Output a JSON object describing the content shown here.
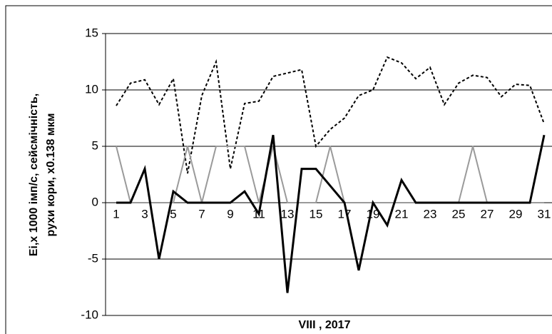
{
  "chart_data": {
    "type": "line",
    "xlabel": "VIII , 2017",
    "ylabel": [
      "Еі,х 1000 імп/с, сейсмічність,",
      "рухи кори, х0.138 мкм"
    ],
    "categories": [
      1,
      null,
      3,
      null,
      5,
      null,
      7,
      null,
      9,
      null,
      11,
      null,
      13,
      null,
      15,
      null,
      17,
      null,
      19,
      null,
      21,
      null,
      23,
      null,
      25,
      null,
      27,
      null,
      29,
      null,
      31
    ],
    "series": [
      {
        "color": "#000000",
        "dash": "dotted",
        "values": [
          8.6,
          10.6,
          10.9,
          8.7,
          11,
          2.6,
          9.5,
          12.5,
          3,
          8.8,
          9,
          11.2,
          11.5,
          11.8,
          5,
          6.5,
          7.5,
          9.5,
          10,
          12.9,
          12.4,
          11,
          12,
          8.7,
          10.6,
          11.3,
          11.1,
          9.4,
          10.5,
          10.4,
          7
        ]
      },
      {
        "color": "#9a9a9a",
        "dash": "solid",
        "values": [
          5,
          0,
          0,
          0,
          0,
          5,
          0,
          5,
          5,
          5,
          0,
          5,
          0,
          0,
          0,
          5,
          0,
          0,
          0,
          0,
          0,
          0,
          0,
          0,
          0,
          5,
          0,
          0,
          0,
          0,
          0
        ]
      },
      {
        "color": "#000000",
        "dash": "solid",
        "values": [
          0,
          0,
          3,
          -5,
          1,
          0,
          0,
          0,
          0,
          1,
          -1,
          6,
          -8,
          3,
          3,
          1.5,
          0,
          -6,
          0,
          -2,
          2,
          0,
          0,
          0,
          0,
          0,
          0,
          0,
          0,
          0,
          6
        ]
      }
    ],
    "ylim": [
      -10,
      15
    ],
    "yticks": [
      -10,
      -5,
      0,
      5,
      10,
      15
    ],
    "grid": true
  }
}
